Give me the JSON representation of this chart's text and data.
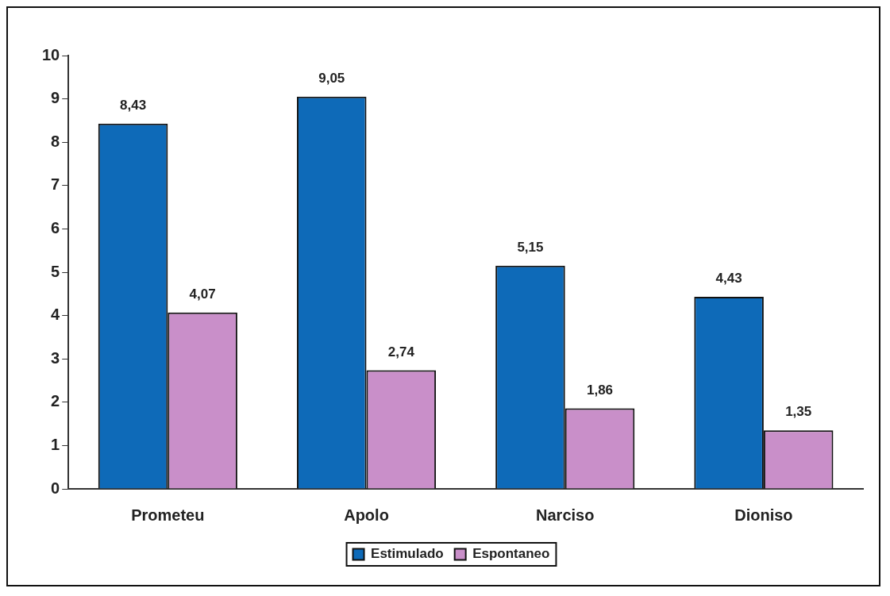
{
  "chart_data": {
    "type": "bar",
    "categories": [
      "Prometeu",
      "Apolo",
      "Narciso",
      "Dioniso"
    ],
    "series": [
      {
        "name": "Estimulado",
        "color": "#0e6ab8",
        "values": [
          8.43,
          9.05,
          5.15,
          4.43
        ],
        "value_labels": [
          "8,43",
          "9,05",
          "5,15",
          "4,43"
        ]
      },
      {
        "name": "Espontaneo",
        "color": "#c98fc9",
        "values": [
          4.07,
          2.74,
          1.86,
          1.35
        ],
        "value_labels": [
          "4,07",
          "2,74",
          "1,86",
          "1,35"
        ]
      }
    ],
    "ylim": [
      0,
      10
    ],
    "yticks": [
      0,
      1,
      2,
      3,
      4,
      5,
      6,
      7,
      8,
      9,
      10
    ],
    "grid": false,
    "legend": "bottom"
  }
}
